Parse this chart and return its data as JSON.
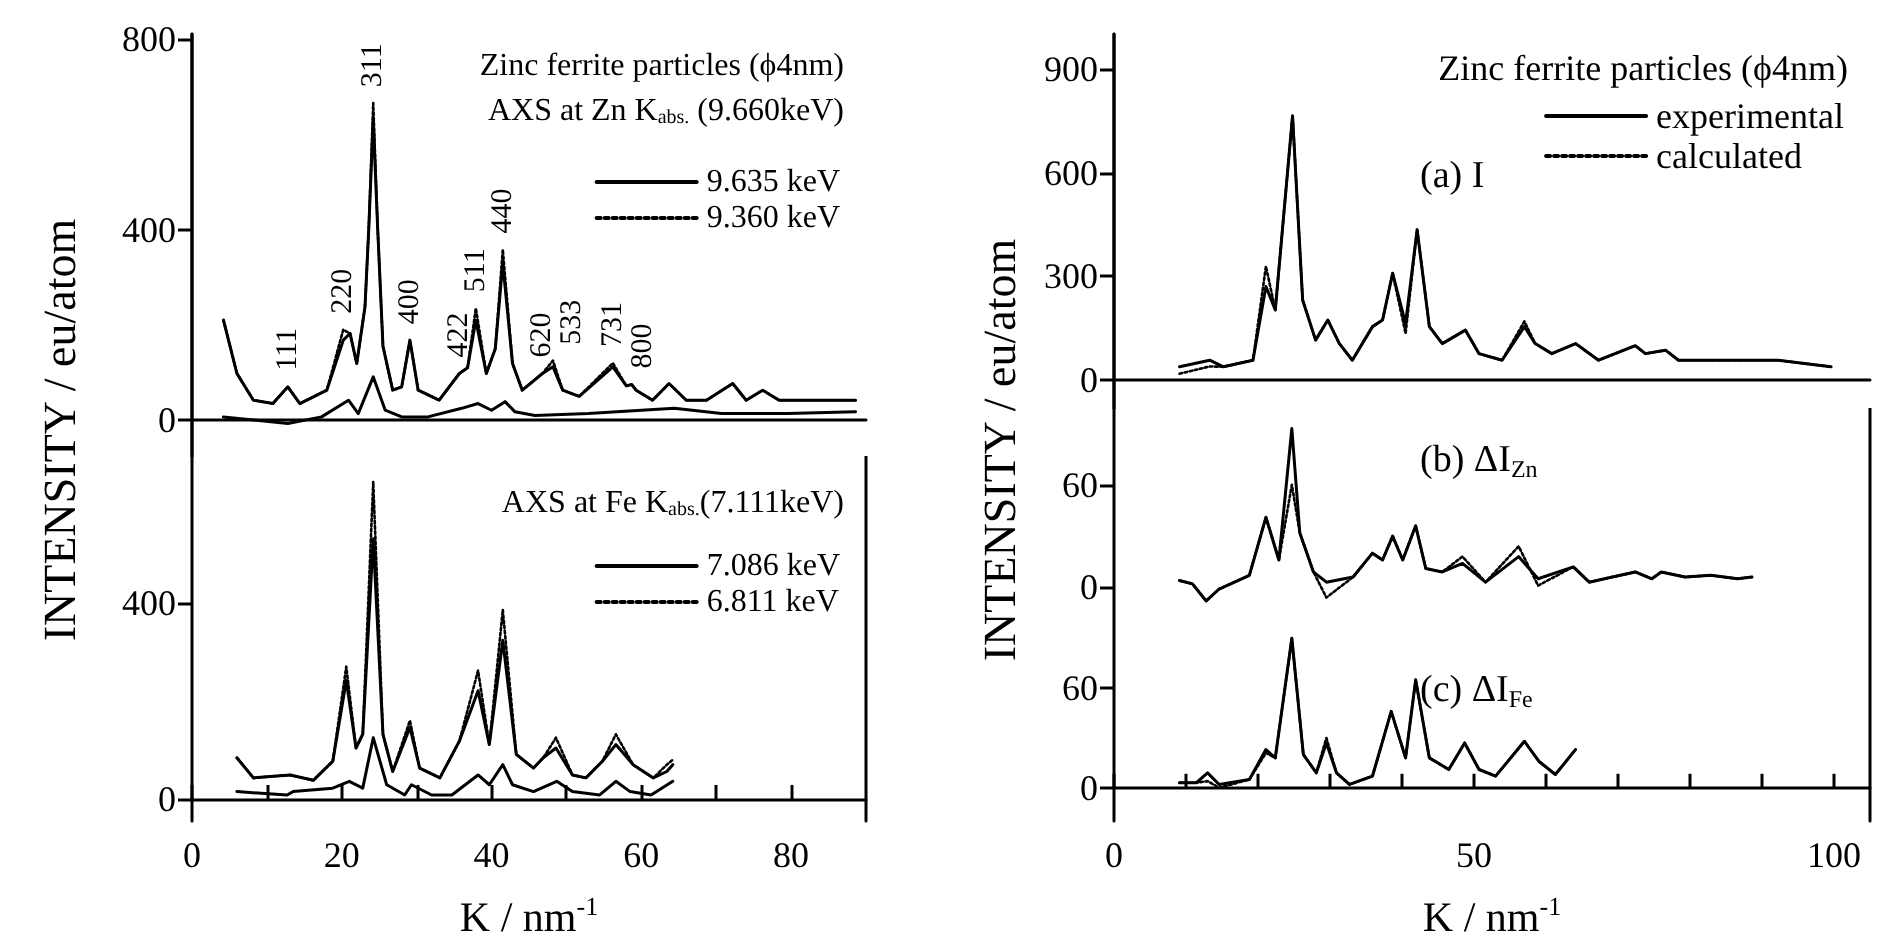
{
  "chart_data": [
    {
      "type": "line",
      "title": "Zinc ferrite particles (ϕ4nm)",
      "subtitle": "AXS at Zn K$_{abs.}$ (9.660keV)",
      "ylabel": "INTENSITY / eu/atom",
      "legend": "top right",
      "marker": "none",
      "tick_labels": "y",
      "xlim": [
        0,
        90
      ],
      "ylim": [
        -75,
        810
      ],
      "yticks": [
        0,
        400,
        800
      ],
      "series": [
        {
          "name": "9.635 keV",
          "color": "#000000",
          "line_style": "solid",
          "x": [
            4.2,
            6,
            8.2,
            10.8,
            12.8,
            14.4,
            18,
            20.2,
            21.1,
            22,
            23.1,
            23.6,
            24.2,
            24.8,
            25.5,
            26.8,
            28,
            29.1,
            30.2,
            33,
            35.7,
            36.8,
            37.9,
            39.3,
            40.5,
            41.5,
            42.8,
            44.1,
            46.8,
            48.2,
            49.5,
            51.7,
            56.2,
            58,
            58.7,
            59.3,
            61.5,
            63.7,
            66,
            68.7,
            72.2,
            74,
            76.2,
            78.4,
            82.8,
            88.6
          ],
          "values": [
            210,
            98,
            42,
            35,
            70,
            35,
            63,
            168,
            182,
            119,
            238,
            400,
            630,
            400,
            155,
            63,
            70,
            168,
            63,
            42,
            98,
            110,
            210,
            98,
            150,
            330,
            119,
            63,
            98,
            112,
            63,
            50,
            112,
            72,
            75,
            63,
            42,
            77,
            42,
            42,
            77,
            42,
            63,
            42,
            42,
            42
          ]
        },
        {
          "name": "9.360 keV",
          "color": "#000000",
          "line_style": "dotted",
          "x": [
            4.2,
            6,
            8.2,
            10.8,
            12.8,
            14.4,
            18,
            20.2,
            21.1,
            22,
            23.1,
            23.6,
            24.2,
            24.8,
            25.5,
            26.8,
            28,
            29.1,
            30.2,
            33,
            35.7,
            36.8,
            37.9,
            39.3,
            40.5,
            41.5,
            42.8,
            44.1,
            46.8,
            48.2,
            49.5,
            51.7,
            56.2,
            58,
            58.7,
            59.3,
            61.5,
            63.7,
            66,
            68.7,
            72.2,
            74,
            76.2,
            78.4,
            82.8,
            88.6
          ],
          "values": [
            210,
            98,
            42,
            35,
            70,
            35,
            63,
            190,
            182,
            119,
            238,
            400,
            665,
            400,
            155,
            63,
            70,
            168,
            63,
            42,
            98,
            110,
            235,
            98,
            150,
            358,
            119,
            63,
            98,
            125,
            63,
            50,
            120,
            72,
            75,
            63,
            42,
            77,
            42,
            42,
            77,
            42,
            63,
            42,
            42,
            42
          ]
        },
        {
          "color": "#000000",
          "line_style": "solid",
          "x": [
            4.2,
            12.8,
            17.3,
            20.9,
            22.2,
            24.2,
            25.8,
            28,
            31.5,
            36,
            38.2,
            40,
            41.8,
            43.1,
            45.8,
            52.9,
            64.4,
            70.7,
            79.6,
            88.6
          ],
          "values": [
            7,
            -7,
            7,
            42,
            14,
            91,
            21,
            7,
            7,
            25,
            35,
            21,
            39,
            18,
            10,
            14,
            25,
            14,
            14,
            18
          ]
        }
      ],
      "annotations": [
        {
          "text": "111",
          "x": 12.8,
          "y": 70
        },
        {
          "text": "220",
          "x": 20.2,
          "y": 190
        },
        {
          "text": "311",
          "x": 24.2,
          "y": 665
        },
        {
          "text": "400",
          "x": 29.1,
          "y": 168
        },
        {
          "text": "422",
          "x": 35.7,
          "y": 98
        },
        {
          "text": "511",
          "x": 37.9,
          "y": 235
        },
        {
          "text": "440",
          "x": 41.5,
          "y": 358
        },
        {
          "text": "620",
          "x": 46.8,
          "y": 98
        },
        {
          "text": "533",
          "x": 48.2,
          "y": 125
        },
        {
          "text": "731",
          "x": 56.2,
          "y": 120
        },
        {
          "text": "800",
          "x": 58.7,
          "y": 75
        }
      ]
    },
    {
      "type": "line",
      "title": "AXS at Fe K$_{abs.}$(7.111keV)",
      "xlabel": "K / nm$^{-1}$",
      "legend": "top right",
      "marker": "none",
      "xlim": [
        0,
        90
      ],
      "xticks": [
        0,
        {
          "value": 10,
          "label": null
        },
        20,
        {
          "value": 30,
          "label": null
        },
        40,
        {
          "value": 50,
          "label": null
        },
        60,
        {
          "value": 70,
          "label": null
        },
        80
      ],
      "ylim": [
        -45,
        700
      ],
      "yticks": [
        0,
        400
      ],
      "series": [
        {
          "name": "7.086 keV",
          "color": "#000000",
          "line_style": "solid",
          "x": [
            6,
            8.2,
            13.1,
            16.2,
            18.8,
            20.6,
            21.9,
            22.8,
            24.2,
            25.5,
            26.8,
            29.1,
            30.4,
            33.1,
            35.7,
            38.2,
            39.7,
            41.5,
            43.3,
            45.6,
            46.9,
            48.6,
            50.8,
            52.6,
            54.8,
            56.6,
            58.9,
            61.6,
            63.4,
            64.2
          ],
          "values": [
            84,
            43,
            49,
            38,
            77,
            242,
            104,
            132,
            531,
            132,
            56,
            146,
            63,
            43,
            118,
            221,
            111,
            324,
            91,
            63,
            84,
            104,
            49,
            43,
            77,
            111,
            70,
            43,
            56,
            70
          ]
        },
        {
          "name": "6.811 keV",
          "color": "#000000",
          "line_style": "dotted",
          "x": [
            6,
            8.2,
            13.1,
            16.2,
            18.8,
            20.6,
            21.9,
            22.8,
            24.2,
            25.5,
            26.8,
            29.1,
            30.4,
            33.1,
            35.7,
            38.2,
            39.7,
            41.5,
            43.3,
            45.6,
            46.9,
            48.6,
            50.8,
            52.6,
            54.8,
            56.6,
            58.9,
            61.6,
            63.4,
            64.2
          ],
          "values": [
            84,
            43,
            49,
            38,
            77,
            270,
            104,
            132,
            647,
            132,
            56,
            160,
            63,
            43,
            118,
            262,
            111,
            386,
            91,
            63,
            84,
            125,
            49,
            43,
            77,
            132,
            70,
            43,
            70,
            80
          ]
        },
        {
          "color": "#000000",
          "line_style": "solid",
          "x": [
            6,
            12.7,
            13.5,
            18.8,
            21,
            22.8,
            24.2,
            26,
            28.4,
            29.3,
            32,
            34.7,
            38.2,
            39.7,
            41.5,
            42.8,
            45.6,
            48.7,
            50.8,
            54.4,
            56.6,
            58.5,
            61.3,
            64.2
          ],
          "values": [
            15,
            8,
            15,
            22,
            36,
            22,
            125,
            29,
            8,
            29,
            8,
            8,
            49,
            29,
            70,
            29,
            15,
            36,
            15,
            8,
            36,
            15,
            8,
            36
          ]
        }
      ]
    },
    {
      "type": "line",
      "title": "Zinc ferrite particles (ϕ4nm)",
      "ylabel": "INTENSITY / eu/atom",
      "legend": "top right",
      "marker": "none",
      "tick_labels": "y",
      "xlim": [
        0,
        105
      ],
      "ylim": [
        -80,
        1000
      ],
      "yticks": [
        0,
        300,
        600,
        900
      ],
      "series": [
        {
          "name": "experimental",
          "color": "#000000",
          "line_style": "solid",
          "x": [
            9.1,
            13.3,
            15.2,
            19.3,
            21.1,
            22.4,
            24.8,
            26.2,
            28,
            29.7,
            31.3,
            33.1,
            35.9,
            37.3,
            38.7,
            40.5,
            42.1,
            43.8,
            45.6,
            48.8,
            50.7,
            53.9,
            57,
            58.5,
            60.8,
            64.1,
            67.3,
            72.4,
            73.8,
            76.6,
            78.4,
            87.6,
            92.2,
            99.6
          ],
          "values": [
            39,
            58,
            39,
            58,
            271,
            203,
            764,
            232,
            116,
            174,
            106,
            58,
            155,
            174,
            309,
            164,
            435,
            155,
            106,
            145,
            77,
            58,
            155,
            106,
            77,
            106,
            58,
            100,
            77,
            87,
            58,
            58,
            58,
            39
          ]
        },
        {
          "name": "calculated",
          "color": "#000000",
          "line_style": "dotted",
          "x": [
            9.1,
            13.3,
            15.2,
            19.3,
            21.1,
            22.4,
            24.8,
            26.2,
            28,
            29.7,
            31.3,
            33.1,
            35.9,
            37.3,
            38.7,
            40.5,
            42.1,
            43.8,
            45.6,
            48.8,
            50.7,
            53.9,
            57,
            58.5,
            60.8,
            64.1,
            67.3,
            72.4,
            73.8,
            76.6,
            78.4,
            87.6,
            92.2,
            99.6
          ],
          "values": [
            19,
            40,
            39,
            58,
            329,
            203,
            764,
            232,
            116,
            174,
            106,
            58,
            155,
            174,
            309,
            135,
            435,
            155,
            106,
            145,
            77,
            58,
            170,
            106,
            77,
            106,
            58,
            100,
            77,
            87,
            58,
            58,
            58,
            39
          ]
        }
      ],
      "annotations": [
        "(a) I"
      ]
    },
    {
      "type": "line",
      "marker": "none",
      "tick_labels": "y",
      "xlim": [
        0,
        105
      ],
      "ylim": [
        -25,
        105
      ],
      "yticks": [
        0,
        60
      ],
      "series": [
        {
          "color": "#000000",
          "line_style": "solid",
          "x": [
            9.1,
            10.9,
            12.8,
            14.6,
            18.8,
            21.1,
            22.9,
            24.7,
            25.8,
            27.7,
            29.5,
            33.2,
            35.9,
            37.3,
            38.7,
            40.1,
            41.9,
            43.3,
            45.6,
            48.4,
            51.6,
            56.2,
            58.9,
            63.8,
            66,
            69.2,
            72.4,
            74.7,
            76,
            79.3,
            82.9,
            86.6,
            88.6
          ],
          "values": [
            4,
            2,
            -8,
            -1,
            7,
            41,
            16,
            93,
            32,
            9,
            3,
            6,
            20,
            16,
            30,
            16,
            36,
            11,
            9,
            14,
            3,
            18,
            5,
            12,
            3,
            6,
            9,
            5,
            9,
            6,
            7,
            5,
            6
          ]
        },
        {
          "color": "#000000",
          "line_style": "dotted",
          "x": [
            9.1,
            10.9,
            12.8,
            14.6,
            18.8,
            21.1,
            22.9,
            24.7,
            25.8,
            27.7,
            29.5,
            33.2,
            35.9,
            37.3,
            38.7,
            40.1,
            41.9,
            43.3,
            45.6,
            48.4,
            51.6,
            56.2,
            58.9,
            63.8,
            66,
            69.2,
            72.4,
            74.7,
            76,
            79.3,
            82.9,
            86.6,
            88.6
          ],
          "values": [
            4,
            2,
            -8,
            -1,
            7,
            41,
            16,
            60,
            32,
            9,
            -6,
            6,
            20,
            16,
            30,
            16,
            36,
            11,
            9,
            18,
            3,
            24,
            1,
            12,
            3,
            6,
            9,
            5,
            9,
            6,
            7,
            5,
            6
          ]
        }
      ],
      "annotations": [
        "(b) ΔI$_{Zn}$"
      ]
    },
    {
      "type": "line",
      "xlabel": "K / nm$^{-1}$",
      "marker": "none",
      "xlim": [
        0,
        105
      ],
      "xticks": [
        0,
        {
          "value": 10,
          "label": null
        },
        {
          "value": 20,
          "label": null
        },
        {
          "value": 30,
          "label": null
        },
        {
          "value": 40,
          "label": null
        },
        50,
        {
          "value": 60,
          "label": null
        },
        {
          "value": 70,
          "label": null
        },
        {
          "value": 80,
          "label": null
        },
        {
          "value": 90,
          "label": null
        },
        100
      ],
      "ylim": [
        -20,
        95
      ],
      "yticks": [
        0,
        60
      ],
      "series": [
        {
          "color": "#000000",
          "line_style": "solid",
          "x": [
            9.1,
            11.4,
            13,
            14.6,
            18.8,
            21.1,
            22.4,
            24.7,
            26.3,
            28.1,
            29.5,
            30.9,
            32.7,
            35.9,
            38.5,
            40.5,
            41.9,
            43.8,
            46.5,
            48.7,
            50.7,
            53,
            57,
            59,
            61.3,
            64.1
          ],
          "values": [
            3,
            3,
            9,
            2,
            5,
            23,
            18,
            90,
            20,
            9,
            27,
            9,
            2,
            7,
            46,
            18,
            65,
            18,
            11,
            27,
            11,
            7,
            28,
            16,
            8,
            23
          ]
        },
        {
          "color": "#000000",
          "line_style": "dotted",
          "x": [
            9.1,
            11.4,
            13,
            14.6,
            18.8,
            21.1,
            22.4,
            24.7,
            26.3,
            28.1,
            29.5,
            30.9,
            32.7,
            35.9,
            38.5,
            40.5,
            41.9,
            43.8,
            46.5,
            48.7,
            50.7,
            53,
            57,
            59,
            61.3,
            64.1
          ],
          "values": [
            3,
            3,
            4,
            0,
            5,
            21,
            18,
            90,
            20,
            9,
            30,
            9,
            2,
            7,
            46,
            18,
            65,
            18,
            11,
            27,
            11,
            7,
            28,
            16,
            8,
            23
          ]
        }
      ],
      "annotations": [
        "(c) ΔI$_{Fe}$"
      ]
    }
  ]
}
